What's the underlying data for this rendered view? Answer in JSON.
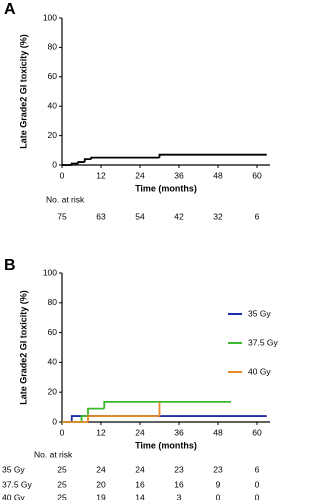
{
  "chart_data": [
    {
      "type": "line",
      "step": true,
      "panel": "A",
      "ylabel": "Late Grade2 GI toxicity (%)",
      "xlabel": "Time (months)",
      "xlim": [
        0,
        64
      ],
      "ylim": [
        0,
        100
      ],
      "xticks": [
        0,
        12,
        24,
        36,
        48,
        60
      ],
      "yticks": [
        0,
        20,
        40,
        60,
        80,
        100
      ],
      "series": [
        {
          "color": "#000000",
          "x": [
            0,
            3,
            5,
            7,
            9,
            30,
            63
          ],
          "values": [
            0,
            1,
            2,
            4,
            5,
            7,
            7
          ]
        }
      ],
      "risk_table": {
        "title": "No. at risk",
        "rows": [
          {
            "values": [
              75,
              63,
              54,
              42,
              32,
              6
            ]
          }
        ]
      }
    },
    {
      "type": "line",
      "step": true,
      "panel": "B",
      "ylabel": "Late Grade2 GI toxicity (%)",
      "xlabel": "Time (months)",
      "xlim": [
        0,
        64
      ],
      "ylim": [
        0,
        100
      ],
      "xticks": [
        0,
        12,
        24,
        36,
        48,
        60
      ],
      "yticks": [
        0,
        20,
        40,
        60,
        80,
        100
      ],
      "series": [
        {
          "name": "35 Gy",
          "color": "#1f2fa8",
          "x": [
            0,
            3,
            63
          ],
          "values": [
            0,
            4,
            4
          ]
        },
        {
          "name": "37.5 Gy",
          "color": "#3cb82e",
          "x": [
            0,
            6,
            8,
            13,
            52
          ],
          "values": [
            0,
            4,
            9,
            13.5,
            13.5
          ]
        },
        {
          "name": "40 Gy",
          "color": "#e8892a",
          "x": [
            0,
            8,
            30
          ],
          "values": [
            0,
            4,
            13.5
          ]
        }
      ],
      "risk_table": {
        "title": "No. at risk",
        "rows": [
          {
            "name": "35 Gy",
            "values": [
              25,
              24,
              24,
              23,
              23,
              6
            ]
          },
          {
            "name": "37.5 Gy",
            "values": [
              25,
              20,
              16,
              16,
              9,
              0
            ]
          },
          {
            "name": "40 Gy",
            "values": [
              25,
              19,
              14,
              3,
              0,
              0
            ]
          }
        ]
      }
    }
  ]
}
